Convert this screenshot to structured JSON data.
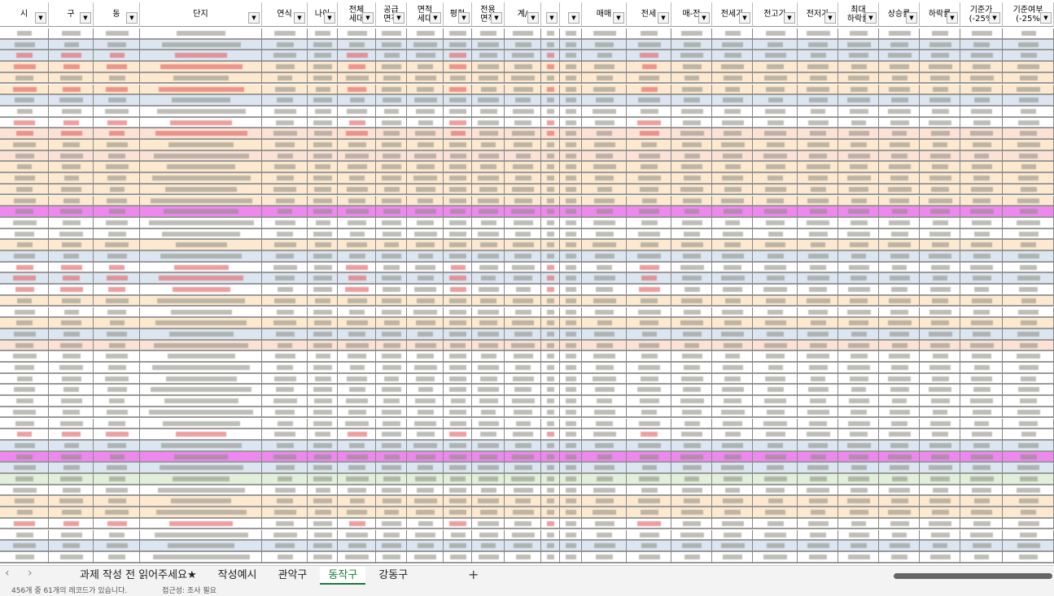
{
  "sheet": {
    "headers": [
      "시",
      "구",
      "동",
      "단지",
      "연식",
      "나이",
      "전체\n세대",
      "공급\n면적",
      "면적\n세대",
      "평형",
      "전용\n면적",
      "계/",
      "매매",
      "전세",
      "매-전",
      "전세가",
      "전고가",
      "전저가",
      "최대\n하락률",
      "상승률",
      "하락률",
      "기준가\n(-25%",
      "기준여부\n(-25%"
    ],
    "tabs": [
      "과제 작성 전 읽어주세요★",
      "작성예시",
      "관악구",
      "동작구",
      "강동구"
    ],
    "active_tab": "동작구",
    "status": "456개 중 61개의 레코드가 있습니다.",
    "accessibility": "접근성: 조사 필요"
  }
}
